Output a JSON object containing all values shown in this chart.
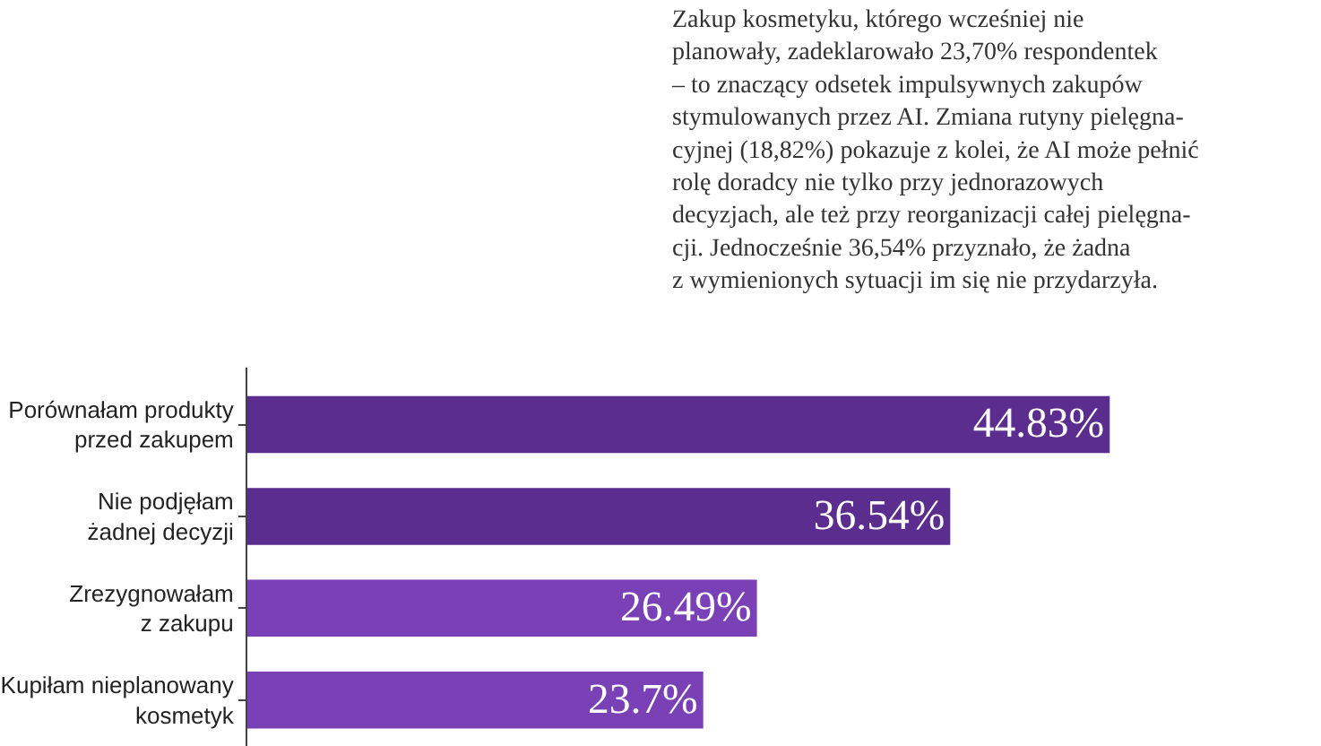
{
  "chart_data": {
    "type": "bar",
    "orientation": "horizontal",
    "categories": [
      "Porównałam produkty\nprzed zakupem",
      "Nie podjęłam\nżadnej decyzji",
      "Zrezygnowałam\nz zakupu",
      "Kupiłam nieplanowany\nkosmetyk"
    ],
    "values": [
      44.83,
      36.54,
      26.49,
      23.7
    ],
    "colors": [
      "#5b2d8e",
      "#5b2d8e",
      "#7a40b6",
      "#7a40b6"
    ],
    "value_labels": [
      "44.83%",
      "36.54%",
      "26.49%",
      "23.7%"
    ],
    "annotations": [
      "Zakup kosmetyku, którego wcześniej nie\nplanowały, zadeklarowało 23,70% respondentek\n– to znaczący odsetek impulsywnych zakupów\nstymulowanych przez AI. Zmiana rutyny pielęgna-\ncyjnej (18,82%) pokazuje z kolei, że AI może pełnić\nrolę doradcy nie tylko przy jednorazowych\ndecyzjach, ale też przy reorganizacji całej pielęgna-\ncji. Jednocześnie 36,54% przyznało, że żadna\nz wymienionych sytuacji im się nie przydarzyła."
    ]
  }
}
